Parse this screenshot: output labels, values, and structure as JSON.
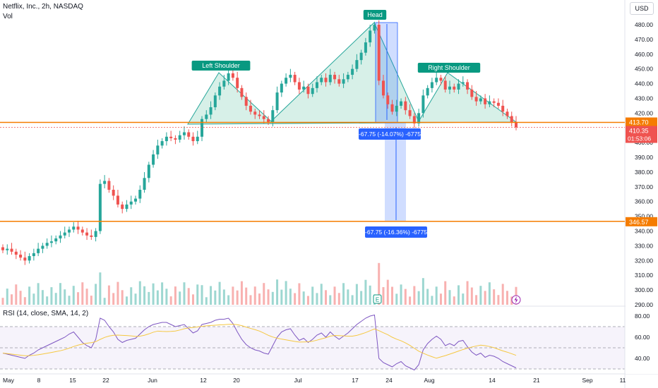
{
  "header": {
    "title": "Netflix, Inc., 2h, NASDAQ",
    "vol_label": "Vol",
    "rsi_label": "RSI (14, close, SMA, 14, 2)",
    "currency": "USD"
  },
  "colors": {
    "up": "#26a69a",
    "down": "#ef5350",
    "pattern_fill": "#b7e4d6",
    "pattern_stroke": "#26a69a",
    "neckline": "#f57c00",
    "measure": "#2962ff",
    "rsi_line": "#7e57c2",
    "rsi_sma": "#f5c842"
  },
  "chart_data": {
    "type": "candlestick",
    "price_axis": {
      "ticks": [
        290,
        300,
        310,
        320,
        330,
        340,
        350,
        360,
        370,
        380,
        390,
        400,
        410,
        420,
        430,
        440,
        450,
        460,
        470,
        480
      ]
    },
    "x_tick_labels": [
      "May",
      "8",
      "15",
      "22",
      "Jun",
      "12",
      "20",
      "Jul",
      "17",
      "24",
      "Aug",
      "14",
      "21",
      "Sep",
      "11"
    ],
    "price_labels": {
      "neckline": "413.70",
      "current": "410.35",
      "countdown": "01:53:06",
      "target": "346.57"
    },
    "pattern_labels": {
      "left_shoulder": "Left Shoulder",
      "head": "Head",
      "right_shoulder": "Right Shoulder"
    },
    "measurements": [
      "-67.75 (-14.07%) -6775",
      "-67.75 (-16.36%) -6775"
    ],
    "rsi_axis": {
      "ticks": [
        40.0,
        60.0,
        80.0
      ]
    },
    "rsi_ticks_text": [
      "80.00",
      "60.00",
      "40.00"
    ],
    "event_icon": "E",
    "closes": [
      327,
      328,
      326,
      324,
      322,
      320,
      323,
      325,
      328,
      330,
      332,
      333,
      335,
      337,
      339,
      341,
      343,
      341,
      339,
      337,
      336,
      340,
      372,
      374,
      368,
      364,
      358,
      355,
      358,
      360,
      362,
      368,
      376,
      385,
      392,
      398,
      401,
      404,
      403,
      402,
      405,
      407,
      404,
      401,
      404,
      416,
      419,
      424,
      432,
      438,
      442,
      447,
      444,
      437,
      431,
      425,
      421,
      419,
      418,
      416,
      414,
      422,
      434,
      440,
      444,
      446,
      441,
      436,
      438,
      433,
      437,
      441,
      444,
      441,
      446,
      443,
      440,
      443,
      446,
      450,
      456,
      461,
      468,
      476,
      480,
      442,
      432,
      426,
      421,
      425,
      428,
      422,
      418,
      413,
      420,
      432,
      437,
      441,
      444,
      442,
      436,
      438,
      436,
      440,
      441,
      436,
      431,
      428,
      430,
      426,
      428,
      427,
      425,
      421,
      418,
      414,
      410.35
    ],
    "rsi": [
      45,
      44,
      43,
      42,
      41,
      40,
      43,
      45,
      48,
      50,
      52,
      54,
      56,
      58,
      60,
      63,
      65,
      60,
      55,
      52,
      50,
      58,
      78,
      76,
      70,
      65,
      58,
      55,
      57,
      58,
      59,
      63,
      67,
      70,
      72,
      73,
      74,
      74,
      72,
      70,
      71,
      72,
      68,
      64,
      66,
      72,
      73,
      74,
      76,
      77,
      77,
      78,
      73,
      65,
      58,
      53,
      50,
      48,
      47,
      45,
      44,
      52,
      60,
      65,
      67,
      68,
      62,
      57,
      59,
      55,
      58,
      62,
      64,
      60,
      65,
      61,
      58,
      61,
      64,
      68,
      72,
      75,
      78,
      80,
      81,
      40,
      36,
      34,
      32,
      35,
      37,
      33,
      31,
      29,
      34,
      48,
      54,
      58,
      61,
      58,
      52,
      54,
      52,
      56,
      57,
      51,
      46,
      43,
      45,
      41,
      43,
      42,
      40,
      37,
      35,
      33,
      31
    ]
  }
}
